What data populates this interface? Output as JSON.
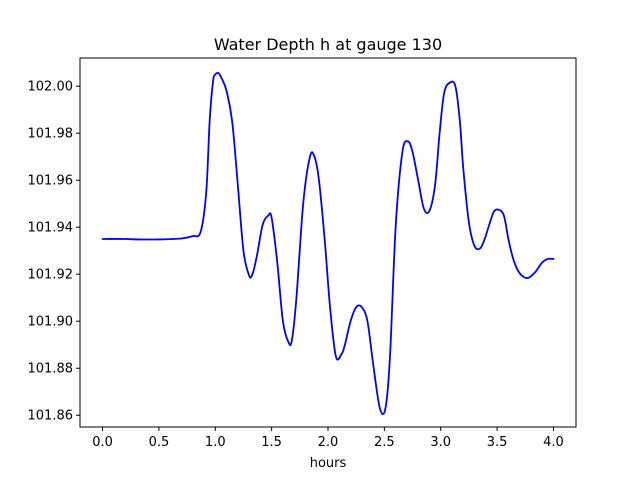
{
  "chart_data": {
    "type": "line",
    "title": "Water Depth h at gauge 130",
    "xlabel": "hours",
    "ylabel": "",
    "xlim": [
      -0.2,
      4.2
    ],
    "ylim": [
      101.855,
      102.012
    ],
    "xticks": [
      0.0,
      0.5,
      1.0,
      1.5,
      2.0,
      2.5,
      3.0,
      3.5,
      4.0
    ],
    "xtick_labels": [
      "0.0",
      "0.5",
      "1.0",
      "1.5",
      "2.0",
      "2.5",
      "3.0",
      "3.5",
      "4.0"
    ],
    "yticks": [
      101.86,
      101.88,
      101.9,
      101.92,
      101.94,
      101.96,
      101.98,
      102.0
    ],
    "ytick_labels": [
      "101.86",
      "101.88",
      "101.90",
      "101.92",
      "101.94",
      "101.96",
      "101.98",
      "102.00"
    ],
    "grid": false,
    "series": [
      {
        "color": "#0000ff",
        "x": [
          0.0,
          0.2,
          0.3,
          0.5,
          0.7,
          0.8,
          0.87,
          0.92,
          0.95,
          0.98,
          1.0,
          1.03,
          1.06,
          1.1,
          1.15,
          1.2,
          1.25,
          1.3,
          1.33,
          1.37,
          1.42,
          1.47,
          1.5,
          1.55,
          1.6,
          1.65,
          1.68,
          1.72,
          1.78,
          1.84,
          1.88,
          1.92,
          1.97,
          2.02,
          2.07,
          2.12,
          2.15,
          2.2,
          2.25,
          2.3,
          2.35,
          2.4,
          2.46,
          2.51,
          2.55,
          2.6,
          2.66,
          2.71,
          2.75,
          2.8,
          2.85,
          2.9,
          2.95,
          2.99,
          3.03,
          3.08,
          3.13,
          3.17,
          3.2,
          3.25,
          3.3,
          3.35,
          3.39,
          3.43,
          3.47,
          3.51,
          3.56,
          3.6,
          3.64,
          3.68,
          3.73,
          3.78,
          3.84,
          3.9,
          3.95,
          4.0
        ],
        "y": [
          101.935,
          101.935,
          101.9348,
          101.9348,
          101.9352,
          101.9362,
          101.938,
          101.955,
          101.985,
          102.002,
          102.005,
          102.0055,
          102.003,
          101.998,
          101.985,
          101.958,
          101.93,
          101.9195,
          101.92,
          101.928,
          101.941,
          101.945,
          101.944,
          101.925,
          101.9,
          101.891,
          101.892,
          101.91,
          101.95,
          101.97,
          101.97,
          101.96,
          101.935,
          101.905,
          101.885,
          101.886,
          101.89,
          101.9,
          101.906,
          101.906,
          101.9,
          101.882,
          101.863,
          101.863,
          101.885,
          101.94,
          101.972,
          101.9765,
          101.972,
          101.96,
          101.948,
          101.947,
          101.958,
          101.98,
          101.997,
          102.0015,
          102.0,
          101.985,
          101.965,
          101.942,
          101.932,
          101.931,
          101.935,
          101.941,
          101.9465,
          101.9475,
          101.945,
          101.935,
          101.927,
          101.922,
          101.919,
          101.9185,
          101.921,
          101.925,
          101.9265,
          101.9265
        ]
      }
    ]
  }
}
